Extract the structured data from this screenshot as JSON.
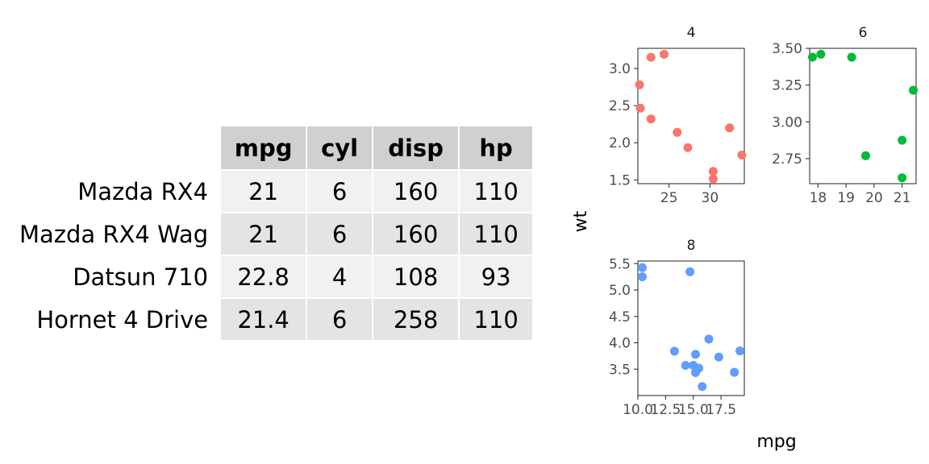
{
  "table": {
    "columns": [
      "mpg",
      "cyl",
      "disp",
      "hp"
    ],
    "rows": [
      {
        "name": "Mazda RX4",
        "values": [
          "21",
          "6",
          "160",
          "110"
        ]
      },
      {
        "name": "Mazda RX4 Wag",
        "values": [
          "21",
          "6",
          "160",
          "110"
        ]
      },
      {
        "name": "Datsun 710",
        "values": [
          "22.8",
          "4",
          "108",
          "93"
        ]
      },
      {
        "name": "Hornet 4 Drive",
        "values": [
          "21.4",
          "6",
          "258",
          "110"
        ]
      }
    ]
  },
  "chart_data": {
    "type": "scatter",
    "xlabel": "mpg",
    "ylabel": "wt",
    "facet_by": "cyl",
    "colors": [
      "#F8766D",
      "#00BA38",
      "#619CFF"
    ],
    "panels": [
      {
        "label": "4",
        "xlim": [
          21.2,
          34.2
        ],
        "ylim": [
          1.45,
          3.27
        ],
        "xticks": [
          25,
          30
        ],
        "xtick_labels": [
          "25",
          "30"
        ],
        "yticks": [
          1.5,
          2.0,
          2.5,
          3.0
        ],
        "ytick_labels": [
          "1.5",
          "2.0",
          "2.5",
          "3.0"
        ],
        "points": [
          [
            22.8,
            2.32
          ],
          [
            24.4,
            3.19
          ],
          [
            22.8,
            3.15
          ],
          [
            32.4,
            2.2
          ],
          [
            30.4,
            1.615
          ],
          [
            33.9,
            1.835
          ],
          [
            21.5,
            2.465
          ],
          [
            27.3,
            1.935
          ],
          [
            26.0,
            2.14
          ],
          [
            30.4,
            1.513
          ],
          [
            21.4,
            2.78
          ]
        ]
      },
      {
        "label": "6",
        "xlim": [
          17.7,
          21.5
        ],
        "ylim": [
          2.58,
          3.5
        ],
        "xticks": [
          18,
          19,
          20,
          21
        ],
        "xtick_labels": [
          "18",
          "19",
          "20",
          "21"
        ],
        "yticks": [
          2.75,
          3.0,
          3.25,
          3.5
        ],
        "ytick_labels": [
          "2.75",
          "3.00",
          "3.25",
          "3.50"
        ],
        "points": [
          [
            21.0,
            2.62
          ],
          [
            21.0,
            2.875
          ],
          [
            21.4,
            3.215
          ],
          [
            18.1,
            3.46
          ],
          [
            19.2,
            3.44
          ],
          [
            17.8,
            3.44
          ],
          [
            19.7,
            2.77
          ]
        ]
      },
      {
        "label": "8",
        "xlim": [
          10.0,
          19.6
        ],
        "ylim": [
          3.0,
          5.55
        ],
        "xticks": [
          10.0,
          12.5,
          15.0,
          17.5
        ],
        "xtick_labels": [
          "10.0",
          "12.5",
          "15.0",
          "17.5"
        ],
        "yticks": [
          3.5,
          4.0,
          4.5,
          5.0,
          5.5
        ],
        "ytick_labels": [
          "3.5",
          "4.0",
          "4.5",
          "5.0",
          "5.5"
        ],
        "points": [
          [
            18.7,
            3.44
          ],
          [
            14.3,
            3.57
          ],
          [
            16.4,
            4.07
          ],
          [
            17.3,
            3.73
          ],
          [
            15.2,
            3.78
          ],
          [
            10.4,
            5.25
          ],
          [
            10.4,
            5.424
          ],
          [
            14.7,
            5.345
          ],
          [
            15.5,
            3.52
          ],
          [
            15.2,
            3.435
          ],
          [
            13.3,
            3.84
          ],
          [
            19.2,
            3.845
          ],
          [
            15.8,
            3.17
          ],
          [
            15.0,
            3.57
          ]
        ]
      }
    ]
  }
}
